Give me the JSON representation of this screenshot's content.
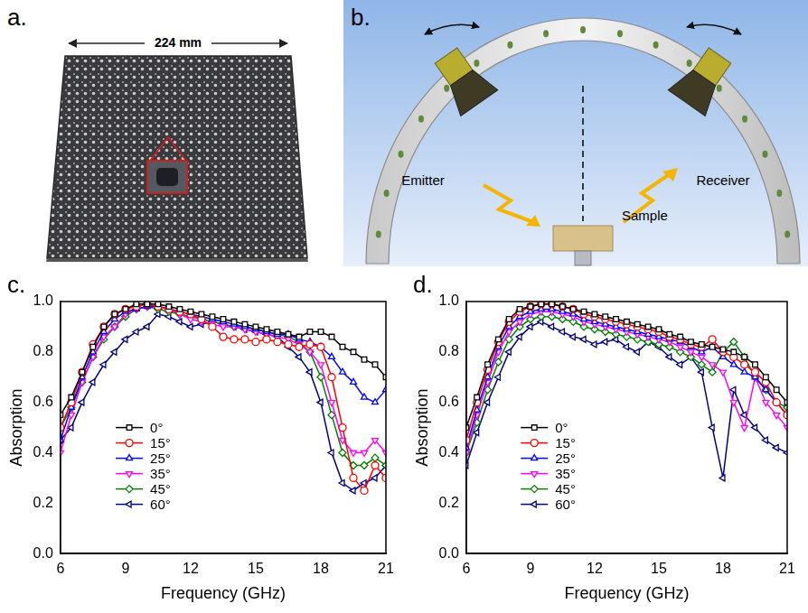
{
  "photo": {
    "panel": "a.",
    "width_text": "224 mm"
  },
  "diagram": {
    "panel": "b.",
    "emitter": "Emitter",
    "receiver": "Receiver",
    "sample": "Sample"
  },
  "chart_data": [
    {
      "panel": "c.",
      "type": "line",
      "x_label": "Frequency (GHz)",
      "y_label": "Absorption",
      "x": [
        6,
        6.5,
        7,
        7.5,
        8,
        8.5,
        9,
        9.5,
        10,
        10.5,
        11,
        11.5,
        12,
        12.5,
        13,
        13.5,
        14,
        14.5,
        15,
        15.5,
        16,
        16.5,
        17,
        17.5,
        18,
        18.5,
        19,
        19.5,
        20,
        20.5,
        21
      ],
      "xlim": [
        6,
        21
      ],
      "xticks": [
        6,
        9,
        12,
        15,
        18,
        21
      ],
      "ylim": [
        0,
        1
      ],
      "yticks": [
        {
          "value": 0,
          "label": "0.0"
        },
        0.2,
        0.4,
        0.6,
        0.8,
        {
          "value": 1,
          "label": "1.0"
        }
      ],
      "grid": false,
      "legend": "lower left",
      "series": [
        {
          "name": "0°",
          "color": "#000000",
          "marker": "square",
          "values": [
            0.55,
            0.62,
            0.72,
            0.82,
            0.9,
            0.95,
            0.97,
            0.99,
            0.99,
            0.99,
            0.98,
            0.97,
            0.96,
            0.95,
            0.94,
            0.93,
            0.92,
            0.91,
            0.9,
            0.89,
            0.88,
            0.87,
            0.86,
            0.88,
            0.88,
            0.86,
            0.82,
            0.8,
            0.77,
            0.75,
            0.7
          ]
        },
        {
          "name": "15°",
          "color": "#ff0000",
          "marker": "circle",
          "values": [
            0.5,
            0.6,
            0.72,
            0.83,
            0.9,
            0.95,
            0.97,
            0.98,
            0.99,
            0.98,
            0.97,
            0.96,
            0.95,
            0.93,
            0.9,
            0.86,
            0.85,
            0.85,
            0.84,
            0.85,
            0.84,
            0.83,
            0.82,
            0.83,
            0.82,
            0.7,
            0.5,
            0.3,
            0.25,
            0.35,
            0.3
          ]
        },
        {
          "name": "25°",
          "color": "#0000ff",
          "marker": "triangle-up",
          "values": [
            0.45,
            0.58,
            0.7,
            0.8,
            0.88,
            0.93,
            0.96,
            0.97,
            0.98,
            0.98,
            0.97,
            0.96,
            0.95,
            0.94,
            0.93,
            0.92,
            0.91,
            0.9,
            0.89,
            0.88,
            0.87,
            0.87,
            0.85,
            0.84,
            0.82,
            0.78,
            0.72,
            0.68,
            0.62,
            0.6,
            0.65
          ]
        },
        {
          "name": "35°",
          "color": "#ff00ff",
          "marker": "triangle-down",
          "values": [
            0.4,
            0.55,
            0.68,
            0.78,
            0.86,
            0.9,
            0.95,
            0.97,
            0.98,
            0.98,
            0.97,
            0.95,
            0.93,
            0.92,
            0.91,
            0.9,
            0.9,
            0.89,
            0.88,
            0.87,
            0.86,
            0.85,
            0.83,
            0.8,
            0.75,
            0.6,
            0.45,
            0.4,
            0.4,
            0.45,
            0.4
          ]
        },
        {
          "name": "45°",
          "color": "#008000",
          "marker": "diamond",
          "values": [
            0.5,
            0.58,
            0.68,
            0.78,
            0.85,
            0.9,
            0.94,
            0.97,
            0.98,
            0.97,
            0.96,
            0.95,
            0.94,
            0.93,
            0.92,
            0.91,
            0.9,
            0.9,
            0.89,
            0.88,
            0.87,
            0.86,
            0.84,
            0.8,
            0.7,
            0.55,
            0.4,
            0.35,
            0.35,
            0.38,
            0.35
          ]
        },
        {
          "name": "60°",
          "color": "#000080",
          "marker": "triangle-left",
          "values": [
            0.45,
            0.5,
            0.6,
            0.68,
            0.75,
            0.8,
            0.85,
            0.88,
            0.9,
            0.95,
            0.94,
            0.92,
            0.9,
            0.91,
            0.92,
            0.91,
            0.9,
            0.89,
            0.88,
            0.87,
            0.86,
            0.82,
            0.78,
            0.72,
            0.6,
            0.4,
            0.28,
            0.25,
            0.28,
            0.3,
            0.35
          ]
        }
      ]
    },
    {
      "panel": "d.",
      "type": "line",
      "x_label": "Frequency (GHz)",
      "y_label": "Absorption",
      "x": [
        6,
        6.5,
        7,
        7.5,
        8,
        8.5,
        9,
        9.5,
        10,
        10.5,
        11,
        11.5,
        12,
        12.5,
        13,
        13.5,
        14,
        14.5,
        15,
        15.5,
        16,
        16.5,
        17,
        17.5,
        18,
        18.5,
        19,
        19.5,
        20,
        20.5,
        21
      ],
      "xlim": [
        6,
        21
      ],
      "xticks": [
        6,
        9,
        12,
        15,
        18,
        21
      ],
      "ylim": [
        0,
        1
      ],
      "yticks": [
        {
          "value": 0,
          "label": "0.0"
        },
        0.2,
        0.4,
        0.6,
        0.8,
        {
          "value": 1,
          "label": "1.0"
        }
      ],
      "grid": false,
      "legend": "lower left",
      "series": [
        {
          "name": "0°",
          "color": "#000000",
          "marker": "square",
          "values": [
            0.5,
            0.62,
            0.75,
            0.85,
            0.93,
            0.97,
            0.98,
            0.99,
            0.99,
            0.98,
            0.97,
            0.96,
            0.95,
            0.94,
            0.93,
            0.92,
            0.91,
            0.9,
            0.89,
            0.87,
            0.86,
            0.84,
            0.83,
            0.82,
            0.81,
            0.8,
            0.78,
            0.75,
            0.7,
            0.65,
            0.6
          ]
        },
        {
          "name": "15°",
          "color": "#ff0000",
          "marker": "circle",
          "values": [
            0.45,
            0.6,
            0.73,
            0.84,
            0.92,
            0.96,
            0.98,
            0.99,
            0.99,
            0.98,
            0.97,
            0.95,
            0.94,
            0.93,
            0.92,
            0.91,
            0.9,
            0.89,
            0.88,
            0.86,
            0.85,
            0.83,
            0.82,
            0.85,
            0.8,
            0.78,
            0.75,
            0.72,
            0.68,
            0.6,
            0.55
          ]
        },
        {
          "name": "25°",
          "color": "#0000ff",
          "marker": "triangle-up",
          "values": [
            0.42,
            0.57,
            0.7,
            0.82,
            0.9,
            0.94,
            0.96,
            0.97,
            0.97,
            0.96,
            0.95,
            0.93,
            0.92,
            0.91,
            0.9,
            0.89,
            0.88,
            0.87,
            0.86,
            0.85,
            0.84,
            0.82,
            0.8,
            0.82,
            0.78,
            0.75,
            0.72,
            0.7,
            0.65,
            0.6,
            0.55
          ]
        },
        {
          "name": "35°",
          "color": "#ff00ff",
          "marker": "triangle-down",
          "values": [
            0.4,
            0.55,
            0.68,
            0.8,
            0.88,
            0.92,
            0.95,
            0.96,
            0.96,
            0.95,
            0.94,
            0.92,
            0.91,
            0.9,
            0.89,
            0.88,
            0.87,
            0.86,
            0.85,
            0.84,
            0.82,
            0.8,
            0.78,
            0.75,
            0.72,
            0.6,
            0.5,
            0.7,
            0.6,
            0.55,
            0.5
          ]
        },
        {
          "name": "45°",
          "color": "#008000",
          "marker": "diamond",
          "values": [
            0.4,
            0.52,
            0.65,
            0.76,
            0.85,
            0.9,
            0.93,
            0.94,
            0.94,
            0.93,
            0.92,
            0.9,
            0.89,
            0.88,
            0.87,
            0.86,
            0.85,
            0.84,
            0.83,
            0.82,
            0.8,
            0.78,
            0.75,
            0.72,
            0.8,
            0.84,
            0.78,
            0.7,
            0.65,
            0.6,
            0.58
          ]
        },
        {
          "name": "60°",
          "color": "#000080",
          "marker": "triangle-left",
          "values": [
            0.35,
            0.48,
            0.6,
            0.7,
            0.8,
            0.86,
            0.9,
            0.92,
            0.9,
            0.88,
            0.86,
            0.85,
            0.83,
            0.84,
            0.85,
            0.82,
            0.8,
            0.84,
            0.82,
            0.78,
            0.75,
            0.78,
            0.72,
            0.5,
            0.3,
            0.65,
            0.55,
            0.5,
            0.45,
            0.42,
            0.4
          ]
        }
      ]
    }
  ]
}
